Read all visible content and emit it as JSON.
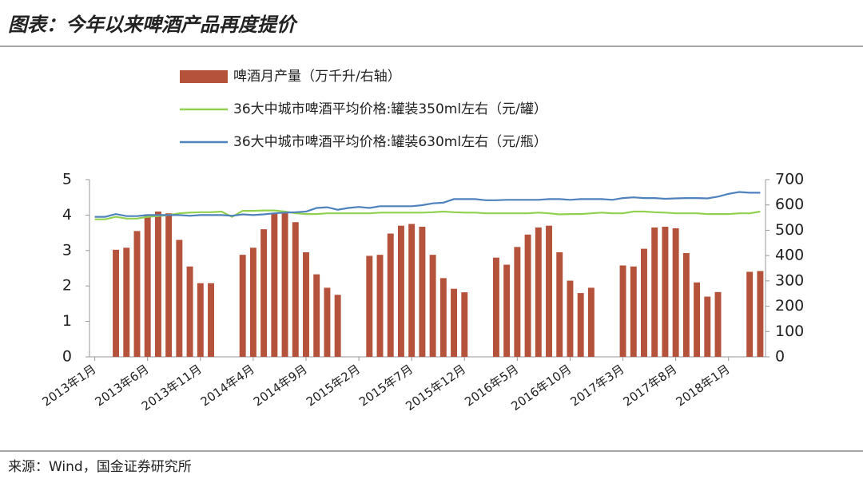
{
  "header": {
    "title": "图表：今年以来啤酒产品再度提价"
  },
  "source": "来源：Wind，国金证券研究所",
  "chart_data": {
    "type": "bar-line",
    "categories": [
      "2013年1月",
      null,
      null,
      null,
      null,
      "2013年6月",
      null,
      null,
      null,
      null,
      "2013年11月",
      null,
      null,
      null,
      null,
      "2014年4月",
      null,
      null,
      null,
      null,
      "2014年9月",
      null,
      null,
      null,
      null,
      "2015年2月",
      null,
      null,
      null,
      null,
      "2015年7月",
      null,
      null,
      null,
      null,
      "2015年12月",
      null,
      null,
      null,
      null,
      "2016年5月",
      null,
      null,
      null,
      null,
      "2016年10月",
      null,
      null,
      null,
      null,
      "2017年3月",
      null,
      null,
      null,
      null,
      "2017年8月",
      null,
      null,
      null,
      null,
      "2018年1月",
      null,
      null,
      null
    ],
    "series": [
      {
        "name": "啤酒月产量（万千升/右轴）",
        "type": "bar",
        "axis": "y2",
        "color": "#b5523b",
        "values": [
          null,
          null,
          423,
          431,
          497,
          563,
          574,
          567,
          462,
          357,
          291,
          291,
          null,
          null,
          403,
          431,
          504,
          567,
          574,
          532,
          413,
          326,
          273,
          245,
          null,
          null,
          399,
          403,
          487,
          518,
          525,
          514,
          403,
          311,
          269,
          255,
          null,
          null,
          392,
          364,
          434,
          483,
          511,
          518,
          413,
          301,
          252,
          273,
          null,
          null,
          361,
          357,
          427,
          511,
          514,
          508,
          410,
          294,
          238,
          256,
          null,
          null,
          336,
          339
        ]
      },
      {
        "name": "36大中城市啤酒平均价格:罐装350ml左右（元/罐）",
        "type": "line",
        "color": "#92d050",
        "values": [
          3.88,
          3.88,
          3.95,
          3.9,
          3.9,
          3.95,
          3.97,
          4.0,
          4.05,
          4.07,
          4.08,
          4.08,
          4.1,
          3.95,
          4.12,
          4.12,
          4.13,
          4.13,
          4.1,
          4.05,
          4.03,
          4.03,
          4.05,
          4.05,
          4.05,
          4.05,
          4.05,
          4.07,
          4.07,
          4.07,
          4.07,
          4.07,
          4.08,
          4.1,
          4.08,
          4.07,
          4.07,
          4.05,
          4.05,
          4.05,
          4.05,
          4.05,
          4.07,
          4.05,
          4.02,
          4.03,
          4.03,
          4.05,
          4.07,
          4.05,
          4.05,
          4.1,
          4.1,
          4.08,
          4.07,
          4.05,
          4.05,
          4.05,
          4.03,
          4.03,
          4.03,
          4.05,
          4.05,
          4.1
        ]
      },
      {
        "name": "36大中城市啤酒平均价格:罐装630ml左右（元/瓶）",
        "type": "line",
        "color": "#4f81bd",
        "values": [
          3.95,
          3.95,
          4.03,
          3.97,
          3.97,
          4.0,
          4.0,
          4.0,
          4.0,
          3.98,
          4.0,
          4.0,
          4.0,
          3.98,
          4.02,
          4.0,
          4.02,
          4.05,
          4.07,
          4.08,
          4.1,
          4.2,
          4.22,
          4.15,
          4.2,
          4.23,
          4.2,
          4.25,
          4.25,
          4.25,
          4.25,
          4.28,
          4.33,
          4.35,
          4.45,
          4.45,
          4.45,
          4.42,
          4.42,
          4.43,
          4.43,
          4.43,
          4.43,
          4.45,
          4.45,
          4.43,
          4.45,
          4.45,
          4.45,
          4.43,
          4.48,
          4.5,
          4.48,
          4.48,
          4.46,
          4.47,
          4.48,
          4.48,
          4.47,
          4.52,
          4.6,
          4.65,
          4.63,
          4.63
        ]
      }
    ],
    "ylim": [
      0,
      5
    ],
    "yticks": [
      0,
      1,
      2,
      3,
      4,
      5
    ],
    "y2lim": [
      0,
      700
    ],
    "y2ticks": [
      0,
      100,
      200,
      300,
      400,
      500,
      600,
      700
    ],
    "grid": false
  }
}
